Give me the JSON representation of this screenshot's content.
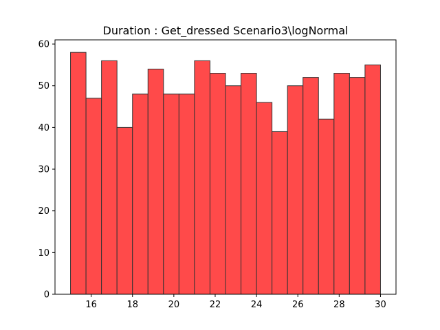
{
  "chart_data": {
    "type": "bar",
    "title": "Duration : Get_dressed Scenario3\\logNormal",
    "xlabel": "",
    "ylabel": "",
    "bin_start": 15,
    "bin_end": 30,
    "bin_count": 20,
    "values": [
      58,
      47,
      56,
      40,
      48,
      54,
      48,
      48,
      56,
      53,
      50,
      53,
      46,
      39,
      50,
      52,
      42,
      53,
      52,
      55
    ],
    "xlim": [
      14.25,
      30.75
    ],
    "ylim": [
      0,
      61
    ],
    "xticks": [
      16,
      18,
      20,
      22,
      24,
      26,
      28,
      30
    ],
    "yticks": [
      0,
      10,
      20,
      30,
      40,
      50,
      60
    ],
    "grid": false,
    "bar_color": "#ff4a4a",
    "edge_color": "#333333"
  }
}
